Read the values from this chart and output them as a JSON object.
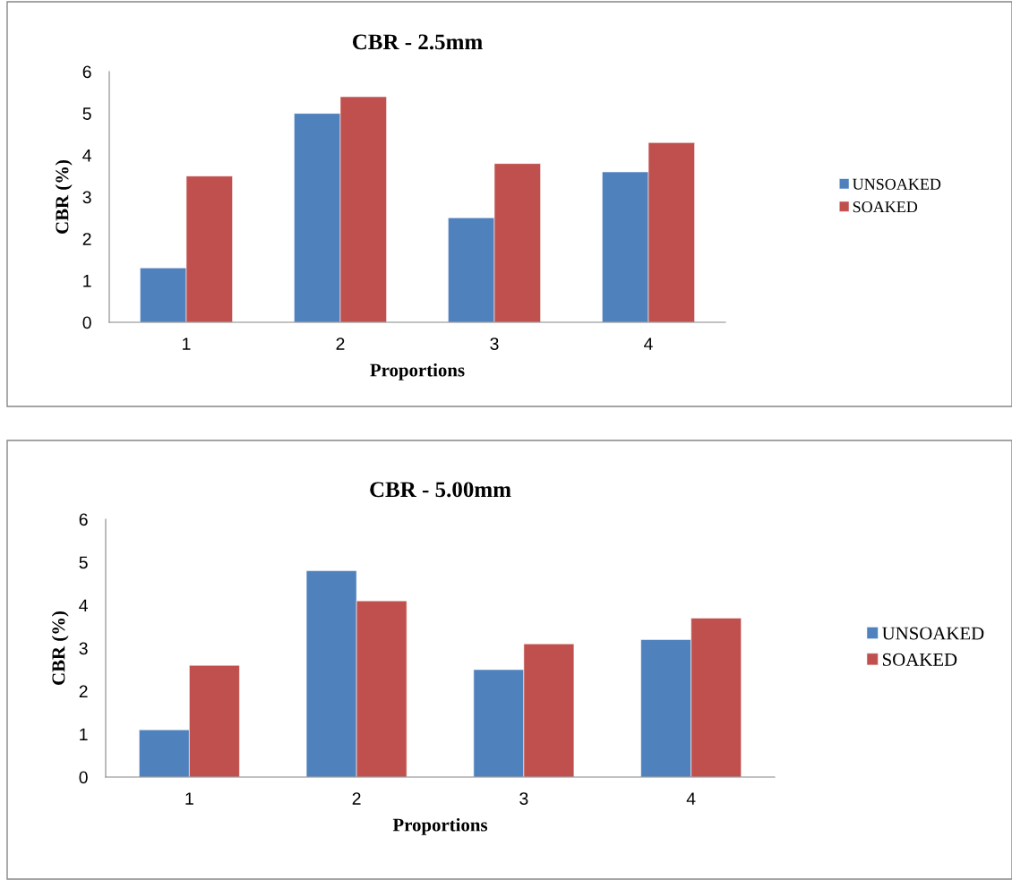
{
  "chart_data": [
    {
      "type": "bar",
      "title": "CBR - 2.5mm",
      "xlabel": "Proportions",
      "ylabel": "CBR (%)",
      "categories": [
        "1",
        "2",
        "3",
        "4"
      ],
      "series": [
        {
          "name": "UNSOAKED",
          "color": "#4f81bd",
          "values": [
            1.3,
            5.0,
            2.5,
            3.6
          ]
        },
        {
          "name": "SOAKED",
          "color": "#c0504d",
          "values": [
            3.5,
            5.4,
            3.8,
            4.3
          ]
        }
      ],
      "ylim": [
        0,
        6
      ],
      "yticks": [
        0,
        1,
        2,
        3,
        4,
        5,
        6
      ],
      "grid": false,
      "legend": "right"
    },
    {
      "type": "bar",
      "title": "CBR - 5.00mm",
      "xlabel": "Proportions",
      "ylabel": "CBR (%)",
      "categories": [
        "1",
        "2",
        "3",
        "4"
      ],
      "series": [
        {
          "name": "UNSOAKED",
          "color": "#4f81bd",
          "values": [
            1.1,
            4.8,
            2.5,
            3.2
          ]
        },
        {
          "name": "SOAKED",
          "color": "#c0504d",
          "values": [
            2.6,
            4.1,
            3.1,
            3.7
          ]
        }
      ],
      "ylim": [
        0,
        6
      ],
      "yticks": [
        0,
        1,
        2,
        3,
        4,
        5,
        6
      ],
      "grid": false,
      "legend": "right"
    }
  ]
}
